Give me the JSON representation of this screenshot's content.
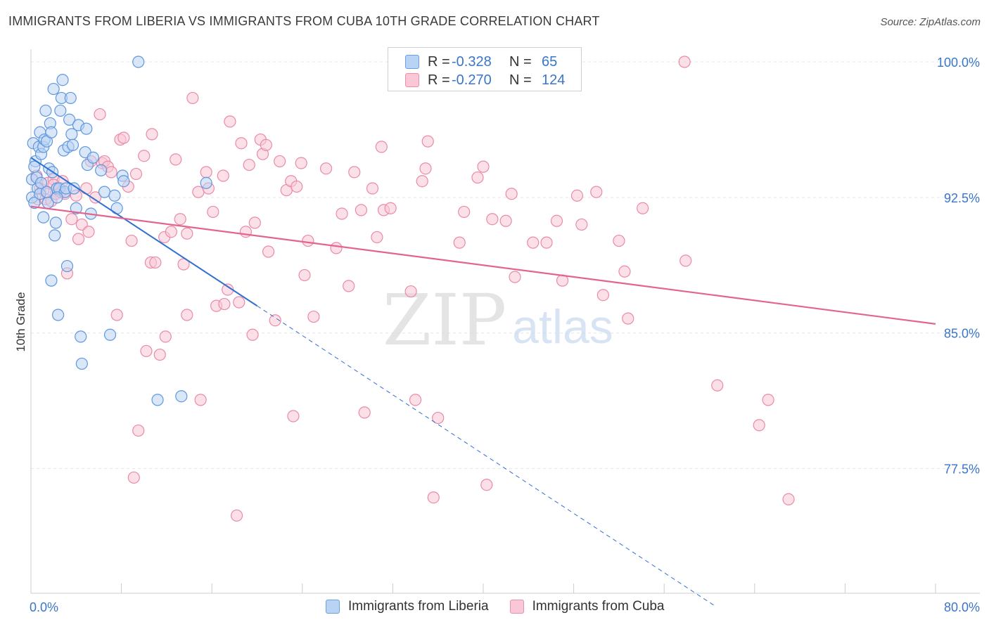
{
  "title": "IMMIGRANTS FROM LIBERIA VS IMMIGRANTS FROM CUBA 10TH GRADE CORRELATION CHART",
  "source": "Source: ZipAtlas.com",
  "watermark": {
    "zip": "ZIP",
    "atlas": "atlas"
  },
  "legend": {
    "r_label": "R =",
    "n_label": "N =",
    "rows": [
      {
        "name": "Immigrants from Liberia",
        "r": "-0.328",
        "n": "65"
      },
      {
        "name": "Immigrants from Cuba",
        "r": "-0.270",
        "n": "124"
      }
    ]
  },
  "colors": {
    "liberia_fill": "#b9d3f4",
    "liberia_stroke": "#5f97de",
    "liberia_line": "#2f6fd1",
    "cuba_fill": "#f9c7d6",
    "cuba_stroke": "#ea8aa7",
    "cuba_line": "#e2648f",
    "axis_label": "#3a76c8",
    "grid": "#e6e6e6"
  },
  "chart_data": {
    "type": "scatter",
    "title": "IMMIGRANTS FROM LIBERIA VS IMMIGRANTS FROM CUBA 10TH GRADE CORRELATION CHART",
    "xlabel": "",
    "ylabel": "10th Grade",
    "xlim": [
      0,
      80
    ],
    "ylim": [
      70.6,
      100.7
    ],
    "x_tick_labels": [
      "0.0%",
      "80.0%"
    ],
    "y_ticks": [
      77.5,
      85.0,
      92.5,
      100.0
    ],
    "y_tick_labels": [
      "77.5%",
      "85.0%",
      "92.5%",
      "100.0%"
    ],
    "grid": true,
    "series": [
      {
        "name": "Immigrants from Liberia",
        "trend": {
          "x0": 0.0,
          "y0": 94.7,
          "x1": 20.0,
          "y1": 86.5,
          "dash_to_x": 60.5
        },
        "points": [
          [
            0.1,
            93.5
          ],
          [
            0.1,
            92.5
          ],
          [
            0.2,
            95.5
          ],
          [
            0.3,
            92.2
          ],
          [
            0.4,
            94.5
          ],
          [
            0.5,
            93.6
          ],
          [
            0.6,
            93.0
          ],
          [
            0.7,
            95.3
          ],
          [
            0.8,
            96.1
          ],
          [
            0.8,
            92.7
          ],
          [
            0.9,
            94.9
          ],
          [
            1.1,
            95.3
          ],
          [
            1.1,
            91.4
          ],
          [
            1.2,
            95.7
          ],
          [
            1.3,
            97.3
          ],
          [
            1.4,
            95.6
          ],
          [
            1.5,
            92.2
          ],
          [
            1.6,
            94.1
          ],
          [
            1.7,
            96.6
          ],
          [
            1.8,
            96.1
          ],
          [
            1.8,
            87.9
          ],
          [
            1.9,
            93.9
          ],
          [
            2.0,
            98.5
          ],
          [
            2.1,
            90.4
          ],
          [
            2.2,
            91.1
          ],
          [
            2.3,
            93.0
          ],
          [
            2.4,
            86.0
          ],
          [
            2.5,
            93.0
          ],
          [
            2.6,
            97.3
          ],
          [
            2.7,
            98.0
          ],
          [
            2.8,
            99.0
          ],
          [
            2.9,
            95.1
          ],
          [
            3.0,
            92.8
          ],
          [
            3.1,
            93.0
          ],
          [
            3.2,
            88.7
          ],
          [
            3.3,
            95.3
          ],
          [
            3.4,
            96.8
          ],
          [
            3.5,
            98.0
          ],
          [
            3.6,
            96.0
          ],
          [
            3.7,
            95.4
          ],
          [
            3.8,
            93.0
          ],
          [
            4.0,
            91.9
          ],
          [
            4.2,
            96.5
          ],
          [
            4.4,
            84.8
          ],
          [
            4.5,
            83.3
          ],
          [
            4.8,
            95.0
          ],
          [
            4.9,
            96.3
          ],
          [
            5.0,
            94.3
          ],
          [
            5.3,
            91.6
          ],
          [
            5.5,
            94.7
          ],
          [
            6.2,
            94.0
          ],
          [
            6.5,
            92.8
          ],
          [
            7.0,
            84.9
          ],
          [
            7.4,
            92.6
          ],
          [
            7.6,
            91.9
          ],
          [
            8.1,
            93.7
          ],
          [
            8.2,
            93.4
          ],
          [
            9.5,
            100.0
          ],
          [
            11.2,
            81.3
          ],
          [
            13.3,
            81.5
          ],
          [
            15.5,
            93.3
          ],
          [
            0.3,
            94.2
          ],
          [
            0.9,
            93.3
          ],
          [
            1.4,
            92.8
          ],
          [
            2.3,
            92.5
          ]
        ]
      },
      {
        "name": "Immigrants from Cuba",
        "trend": {
          "x0": 0.0,
          "y0": 92.0,
          "x1": 80.0,
          "y1": 85.5
        },
        "points": [
          [
            0.5,
            93.7
          ],
          [
            0.6,
            92.4
          ],
          [
            0.8,
            93.0
          ],
          [
            1.1,
            92.9
          ],
          [
            1.3,
            92.4
          ],
          [
            1.5,
            93.3
          ],
          [
            1.8,
            92.3
          ],
          [
            2.0,
            93.5
          ],
          [
            2.2,
            92.7
          ],
          [
            2.4,
            92.9
          ],
          [
            2.6,
            92.8
          ],
          [
            2.8,
            93.4
          ],
          [
            3.0,
            92.7
          ],
          [
            3.2,
            88.3
          ],
          [
            3.6,
            91.3
          ],
          [
            4.0,
            92.6
          ],
          [
            4.2,
            90.2
          ],
          [
            4.5,
            91.0
          ],
          [
            4.9,
            93.0
          ],
          [
            5.1,
            90.6
          ],
          [
            5.3,
            94.5
          ],
          [
            5.7,
            92.5
          ],
          [
            6.1,
            97.1
          ],
          [
            6.3,
            94.4
          ],
          [
            6.5,
            94.5
          ],
          [
            6.8,
            94.2
          ],
          [
            7.1,
            93.9
          ],
          [
            7.6,
            86.0
          ],
          [
            7.9,
            95.7
          ],
          [
            8.2,
            95.8
          ],
          [
            8.6,
            93.1
          ],
          [
            8.9,
            90.1
          ],
          [
            9.3,
            93.8
          ],
          [
            9.5,
            79.6
          ],
          [
            9.1,
            77.0
          ],
          [
            10.0,
            94.8
          ],
          [
            10.2,
            84.0
          ],
          [
            10.6,
            88.9
          ],
          [
            10.7,
            96.0
          ],
          [
            11.0,
            88.9
          ],
          [
            11.4,
            83.8
          ],
          [
            11.8,
            90.3
          ],
          [
            11.9,
            84.8
          ],
          [
            12.4,
            90.6
          ],
          [
            12.8,
            94.6
          ],
          [
            13.2,
            91.3
          ],
          [
            13.5,
            88.8
          ],
          [
            13.8,
            86.0
          ],
          [
            13.8,
            90.5
          ],
          [
            14.3,
            98.0
          ],
          [
            14.8,
            92.8
          ],
          [
            15.0,
            81.3
          ],
          [
            15.5,
            93.9
          ],
          [
            15.7,
            93.0
          ],
          [
            16.1,
            91.7
          ],
          [
            16.4,
            86.5
          ],
          [
            17.0,
            93.7
          ],
          [
            17.1,
            86.6
          ],
          [
            17.4,
            87.4
          ],
          [
            17.6,
            96.7
          ],
          [
            18.2,
            74.9
          ],
          [
            18.4,
            86.7
          ],
          [
            18.6,
            95.5
          ],
          [
            19.0,
            90.6
          ],
          [
            19.3,
            94.3
          ],
          [
            19.6,
            84.9
          ],
          [
            19.8,
            91.1
          ],
          [
            20.3,
            95.7
          ],
          [
            20.5,
            94.9
          ],
          [
            20.8,
            95.4
          ],
          [
            21.0,
            89.5
          ],
          [
            21.6,
            85.7
          ],
          [
            22.0,
            94.5
          ],
          [
            22.6,
            92.9
          ],
          [
            23.0,
            93.4
          ],
          [
            23.2,
            80.4
          ],
          [
            23.5,
            93.1
          ],
          [
            23.9,
            94.4
          ],
          [
            24.2,
            88.2
          ],
          [
            24.5,
            90.1
          ],
          [
            25.0,
            85.9
          ],
          [
            26.1,
            94.1
          ],
          [
            27.0,
            89.7
          ],
          [
            27.5,
            91.6
          ],
          [
            28.1,
            87.6
          ],
          [
            28.6,
            93.9
          ],
          [
            29.2,
            91.8
          ],
          [
            29.5,
            80.6
          ],
          [
            30.2,
            93.0
          ],
          [
            30.6,
            90.3
          ],
          [
            31.0,
            95.3
          ],
          [
            31.2,
            91.8
          ],
          [
            31.8,
            91.9
          ],
          [
            33.6,
            87.3
          ],
          [
            34.0,
            81.3
          ],
          [
            34.6,
            93.4
          ],
          [
            34.9,
            94.1
          ],
          [
            35.1,
            95.6
          ],
          [
            35.6,
            75.9
          ],
          [
            36.0,
            80.3
          ],
          [
            37.9,
            90.0
          ],
          [
            38.3,
            91.7
          ],
          [
            39.5,
            93.6
          ],
          [
            40.0,
            94.2
          ],
          [
            40.3,
            76.6
          ],
          [
            40.8,
            91.3
          ],
          [
            42.0,
            91.2
          ],
          [
            42.5,
            92.7
          ],
          [
            42.8,
            88.1
          ],
          [
            44.4,
            90.0
          ],
          [
            45.6,
            90.0
          ],
          [
            46.5,
            91.2
          ],
          [
            47.0,
            87.9
          ],
          [
            48.3,
            92.6
          ],
          [
            48.7,
            91.0
          ],
          [
            50.0,
            92.8
          ],
          [
            50.6,
            87.1
          ],
          [
            52.0,
            90.1
          ],
          [
            52.5,
            88.4
          ],
          [
            52.8,
            85.8
          ],
          [
            54.1,
            91.9
          ],
          [
            57.9,
            89.0
          ],
          [
            57.8,
            100.0
          ],
          [
            60.7,
            82.1
          ],
          [
            64.4,
            79.9
          ],
          [
            65.2,
            81.3
          ],
          [
            67.0,
            75.8
          ],
          [
            2.0,
            93.2
          ]
        ]
      }
    ]
  }
}
